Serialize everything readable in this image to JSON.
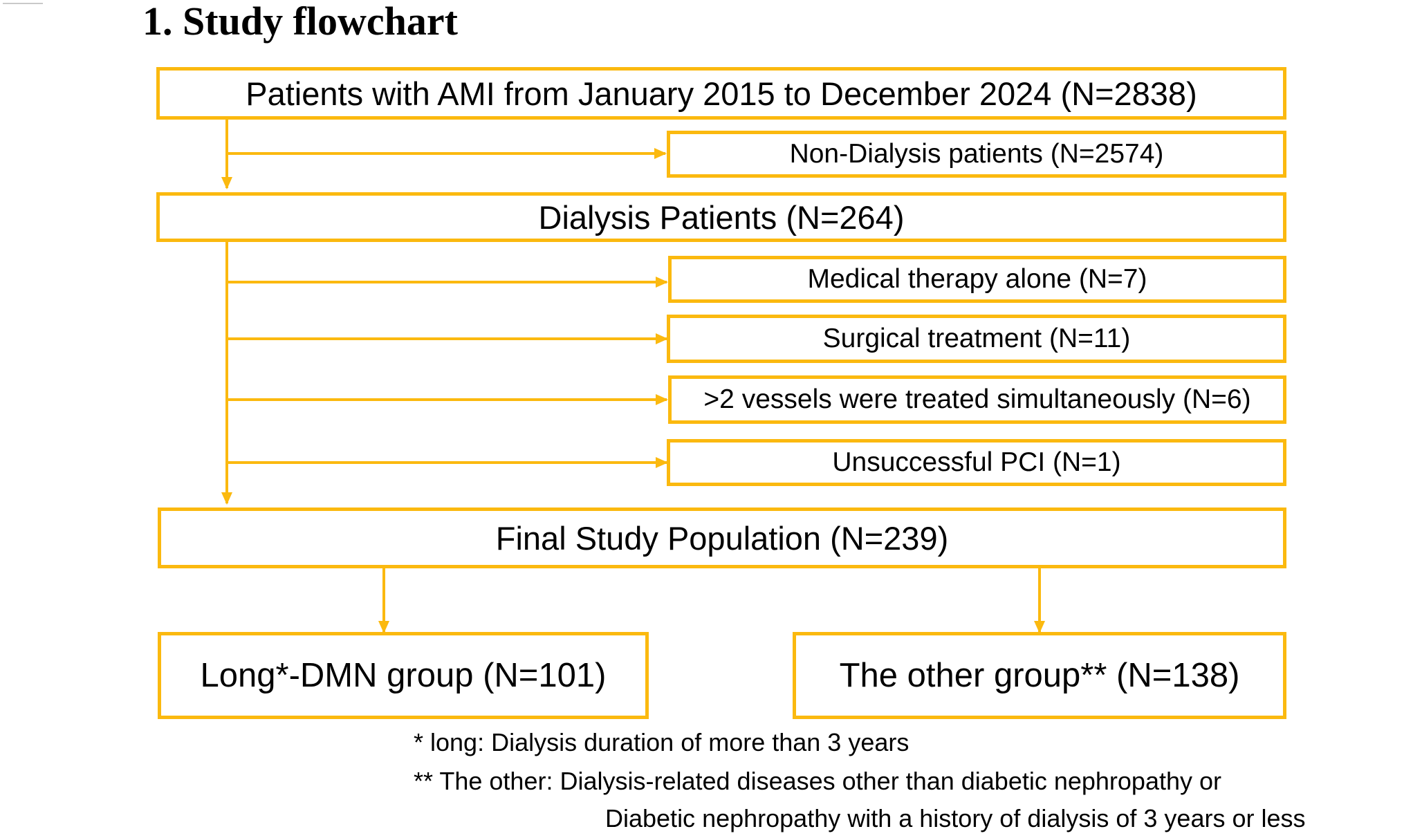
{
  "title": "1. Study flowchart",
  "colors": {
    "accent": "#fbb90f"
  },
  "boxes": {
    "all_patients": "Patients with AMI from January 2015 to December 2024 (N=2838)",
    "non_dialysis": "Non-Dialysis patients (N=2574)",
    "dialysis": "Dialysis Patients (N=264)",
    "medical": "Medical therapy alone (N=7)",
    "surgical": "Surgical treatment (N=11)",
    "vessels": ">2 vessels were treated simultaneously (N=6)",
    "unsuccessful": "Unsuccessful PCI  (N=1)",
    "final": "Final Study Population (N=239)",
    "long_group": "Long*-DMN group (N=101)",
    "other_group": "The other group** (N=138)"
  },
  "notes": {
    "long": "* long: Dialysis duration of more than 3 years",
    "other_line1": "** The other: Dialysis-related diseases other than diabetic nephropathy or",
    "other_line2": "Diabetic nephropathy with a history of dialysis of 3 years or less"
  }
}
